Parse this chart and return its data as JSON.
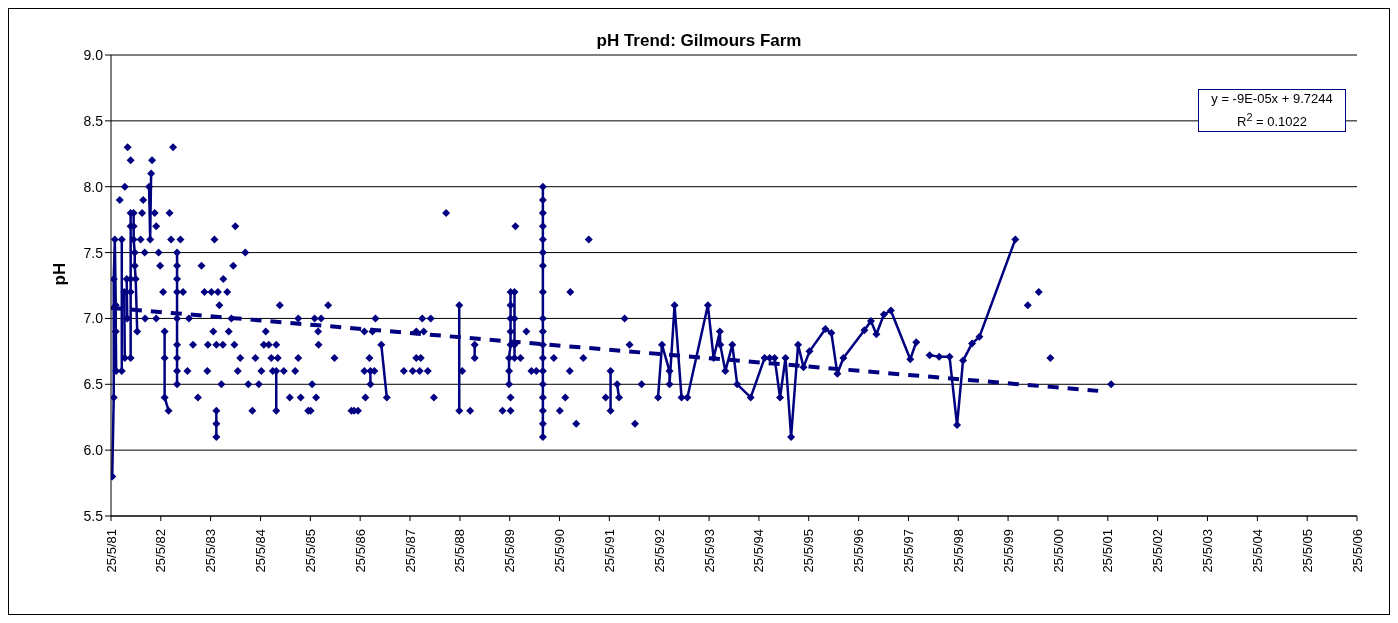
{
  "chart_data": {
    "type": "line",
    "title": "pH Trend: Gilmours Farm",
    "ylabel": "pH",
    "marker": "diamond",
    "line_style": "solid",
    "grid": "y",
    "annotations": [
      "y = -9E-05x + 9.7244",
      "R$^{2}$ = 0.1022"
    ],
    "xlim": [
      "1981-05-25",
      "2006-05-25"
    ],
    "xticks": [
      {
        "value": "1981-05-25",
        "label": "25/5/81"
      },
      {
        "value": "1982-05-25",
        "label": "25/5/82"
      },
      {
        "value": "1983-05-25",
        "label": "25/5/83"
      },
      {
        "value": "1984-05-25",
        "label": "25/5/84"
      },
      {
        "value": "1985-05-25",
        "label": "25/5/85"
      },
      {
        "value": "1986-05-25",
        "label": "25/5/86"
      },
      {
        "value": "1987-05-25",
        "label": "25/5/87"
      },
      {
        "value": "1988-05-25",
        "label": "25/5/88"
      },
      {
        "value": "1989-05-25",
        "label": "25/5/89"
      },
      {
        "value": "1990-05-25",
        "label": "25/5/90"
      },
      {
        "value": "1991-05-25",
        "label": "25/5/91"
      },
      {
        "value": "1992-05-25",
        "label": "25/5/92"
      },
      {
        "value": "1993-05-25",
        "label": "25/5/93"
      },
      {
        "value": "1994-05-25",
        "label": "25/5/94"
      },
      {
        "value": "1995-05-25",
        "label": "25/5/95"
      },
      {
        "value": "1996-05-25",
        "label": "25/5/96"
      },
      {
        "value": "1997-05-25",
        "label": "25/5/97"
      },
      {
        "value": "1998-05-25",
        "label": "25/5/98"
      },
      {
        "value": "1999-05-25",
        "label": "25/5/99"
      },
      {
        "value": "2000-05-25",
        "label": "25/5/00"
      },
      {
        "value": "2001-05-25",
        "label": "25/5/01"
      },
      {
        "value": "2002-05-25",
        "label": "25/5/02"
      },
      {
        "value": "2003-05-25",
        "label": "25/5/03"
      },
      {
        "value": "2004-05-25",
        "label": "25/5/04"
      },
      {
        "value": "2005-05-25",
        "label": "25/5/05"
      },
      {
        "value": "2006-05-25",
        "label": "25/5/06"
      }
    ],
    "ylim": [
      5.5,
      9.0
    ],
    "yticks": [
      5.5,
      {
        "value": 6,
        "label": "6.0"
      },
      6.5,
      {
        "value": 7,
        "label": "7.0"
      },
      7.5,
      {
        "value": 8,
        "label": "8.0"
      },
      8.5,
      {
        "value": 9,
        "label": "9.0"
      }
    ],
    "series": [
      {
        "type": "line",
        "color": "#000080",
        "x": [
          "1981-06-03",
          "1981-06-14",
          "1981-06-14",
          "1981-06-22",
          "1981-06-29",
          "1981-06-29",
          "1981-07-02",
          null,
          "1981-07-28",
          null,
          "1981-08-12",
          "1981-08-12",
          null,
          "1981-08-30",
          "1981-09-03",
          null,
          "1981-09-03",
          null,
          "1981-09-17",
          "1981-09-21",
          null,
          "1981-09-24",
          null,
          "1981-10-16",
          "1981-10-16",
          "1981-10-16",
          "1981-10-16",
          "1981-10-16",
          null,
          "1981-10-16",
          null,
          "1981-11-07",
          "1981-11-07",
          "1981-11-07",
          "1981-11-15",
          "1981-11-15",
          "1981-11-22",
          "1981-12-03",
          null,
          "1981-12-28",
          null,
          "1982-01-08",
          null,
          "1982-01-16",
          null,
          "1982-01-27",
          null,
          "1982-01-30",
          null,
          "1982-02-28",
          "1982-03-08",
          "1982-03-15",
          null,
          "1982-03-22",
          null,
          "1982-04-10",
          null,
          "1982-04-21",
          null,
          "1982-04-21",
          null,
          "1982-05-09",
          null,
          "1982-05-20",
          null,
          "1982-06-11",
          null,
          "1982-06-22",
          "1982-06-22",
          "1982-06-22",
          "1982-07-21",
          null,
          "1982-07-28",
          null,
          "1982-08-08",
          null,
          "1982-08-23",
          null,
          "1982-09-21",
          "1982-09-21",
          "1982-09-21",
          "1982-09-21",
          "1982-09-21",
          "1982-09-21",
          "1982-09-21",
          "1982-09-21",
          "1982-09-21",
          null,
          "1982-10-16",
          null,
          "1982-11-04",
          null,
          "1982-12-06",
          null,
          "1982-12-17",
          null,
          "1983-01-16",
          null,
          "1983-02-21",
          null,
          "1983-03-19",
          null,
          "1983-04-10",
          null,
          "1983-05-01",
          null,
          "1983-05-05",
          null,
          "1983-05-31",
          null,
          "1983-06-14",
          null,
          "1983-06-22",
          null,
          "1983-07-06",
          null,
          "1983-07-06",
          "1983-07-06",
          "1983-07-06",
          null,
          "1983-07-17",
          null,
          "1983-07-28",
          null,
          "1983-08-12",
          null,
          "1983-08-23",
          null,
          "1983-08-26",
          null,
          "1983-09-24",
          null,
          "1983-10-05",
          null,
          "1983-10-24",
          null,
          "1983-11-07",
          null,
          "1983-11-15",
          null,
          "1983-11-22",
          null,
          "1983-12-10",
          null,
          "1983-12-28",
          null,
          "1984-02-03",
          null,
          "1984-02-25",
          null,
          "1984-03-26",
          null,
          "1984-04-17",
          null,
          "1984-05-12",
          null,
          "1984-05-31",
          null,
          "1984-06-18",
          null,
          "1984-07-02",
          null,
          "1984-07-24",
          null,
          "1984-08-12",
          null,
          "1984-08-23",
          null,
          "1984-09-17",
          null,
          "1984-09-17",
          "1984-09-17",
          null,
          "1984-09-28",
          null,
          "1984-10-13",
          null,
          "1984-11-11",
          null,
          "1984-12-25",
          null,
          "1985-02-03",
          null,
          "1985-02-25",
          null,
          "1985-02-25",
          null,
          "1985-03-15",
          null,
          "1985-05-09",
          null,
          "1985-05-27",
          null,
          "1985-06-07",
          null,
          "1985-06-25",
          null,
          "1985-07-06",
          null,
          "1985-07-21",
          null,
          "1985-07-24",
          null,
          "1985-08-12",
          null,
          "1985-10-02",
          null,
          "1985-11-18",
          null,
          "1986-03-22",
          null,
          "1986-04-10",
          null,
          "1986-05-09",
          null,
          "1986-06-25",
          null,
          "1986-06-25",
          null,
          "1986-07-02",
          null,
          "1986-08-01",
          null,
          "1986-08-08",
          "1986-08-08",
          null,
          "1986-08-23",
          null,
          "1986-09-06",
          null,
          "1986-09-14",
          null,
          "1986-10-27",
          "1986-12-06",
          null,
          "1987-04-10",
          null,
          "1987-06-14",
          null,
          "1987-07-10",
          null,
          "1987-07-10",
          null,
          "1987-08-04",
          null,
          "1987-08-12",
          null,
          "1987-08-23",
          null,
          "1987-09-03",
          null,
          "1987-10-02",
          null,
          "1987-10-24",
          null,
          "1987-11-16",
          null,
          "1988-02-14",
          null,
          "1988-05-20",
          "1988-05-20",
          null,
          "1988-06-11",
          null,
          "1988-08-08",
          null,
          "1988-09-10",
          "1988-09-10",
          null,
          "1989-04-02",
          null,
          "1989-05-31",
          null,
          "1989-05-31",
          null,
          "1989-05-20",
          "1989-05-20",
          "1989-05-20",
          "1989-05-31",
          "1989-05-31",
          "1989-05-31",
          "1989-05-31",
          "1989-05-31",
          "1989-06-29",
          "1989-06-29",
          "1989-06-29",
          "1989-06-29",
          null,
          "1989-07-06",
          null,
          "1989-08-12",
          null,
          "1989-09-24",
          null,
          "1989-10-31",
          null,
          "1989-12-06",
          null,
          "1990-01-23",
          "1990-01-23",
          "1990-01-23",
          "1990-01-23",
          "1990-01-23",
          "1990-01-23",
          "1990-01-23",
          "1990-01-23",
          "1990-01-23",
          "1990-01-23",
          "1990-01-23",
          "1990-01-23",
          "1990-01-23",
          "1990-01-23",
          "1990-01-23",
          "1990-01-23",
          "1990-01-23",
          "1990-01-23",
          null,
          "1990-04-13",
          null,
          "1990-05-27",
          null,
          "1990-07-06",
          null,
          "1990-08-08",
          null,
          "1990-08-12",
          null,
          "1990-09-24",
          null,
          "1990-11-15",
          null,
          "1990-12-25",
          null,
          "1991-04-28",
          null,
          "1991-06-03",
          "1991-06-03",
          null,
          "1991-07-21",
          "1991-08-04",
          null,
          "1991-09-14",
          null,
          "1991-10-20",
          null,
          "1991-11-29",
          null,
          "1992-01-16",
          null,
          "1992-05-16",
          "1992-06-14",
          "1992-08-08",
          "1992-08-08",
          "1992-09-14",
          "1992-11-04",
          "1992-12-17",
          "1993-05-16",
          "1993-06-27",
          "1993-08-12",
          "1993-08-15",
          "1993-09-21",
          "1993-11-11",
          "1993-12-17",
          "1994-03-26",
          "1994-07-06",
          "1994-08-12",
          "1994-09-17",
          "1994-10-27",
          "1994-12-06",
          "1995-01-16",
          "1995-03-08",
          "1995-04-17",
          "1995-05-31",
          "1995-09-24",
          "1995-11-07",
          "1995-12-21",
          "1996-02-03",
          "1996-07-06",
          "1996-08-23",
          "1996-10-02",
          "1996-11-26",
          "1997-01-16",
          "1997-06-07",
          "1997-07-21",
          null,
          "1997-10-27",
          "1998-01-05",
          "1998-03-22",
          "1998-05-16",
          "1998-06-29",
          "1998-09-03",
          "1998-10-27",
          "1999-07-17",
          null,
          "1999-10-16",
          null,
          "2000-01-05",
          null,
          "2000-03-30",
          null,
          "2001-06-18"
        ],
        "values": [
          5.8,
          6.4,
          7.3,
          7.6,
          7.1,
          6.9,
          6.6,
          null,
          7.9,
          null,
          7.6,
          6.6,
          null,
          7.2,
          6.7,
          null,
          8.0,
          null,
          7.3,
          7.0,
          null,
          8.3,
          null,
          7.8,
          7.7,
          7.3,
          7.2,
          6.7,
          null,
          8.2,
          null,
          7.8,
          7.7,
          7.6,
          7.5,
          7.4,
          7.3,
          6.9,
          null,
          7.6,
          null,
          7.8,
          null,
          7.9,
          null,
          7.5,
          null,
          7.0,
          null,
          8.0,
          7.6,
          8.1,
          null,
          8.2,
          null,
          7.8,
          null,
          7.7,
          null,
          7.0,
          null,
          7.5,
          null,
          7.4,
          null,
          7.2,
          null,
          6.9,
          6.7,
          6.4,
          6.3,
          null,
          7.8,
          null,
          7.6,
          null,
          8.3,
          null,
          7.5,
          7.4,
          7.3,
          7.2,
          7.0,
          6.8,
          6.7,
          6.6,
          6.5,
          null,
          7.6,
          null,
          7.2,
          null,
          6.6,
          null,
          7.0,
          null,
          6.8,
          null,
          6.4,
          null,
          7.4,
          null,
          7.2,
          null,
          6.6,
          null,
          6.8,
          null,
          7.2,
          null,
          6.9,
          null,
          7.6,
          null,
          6.8,
          null,
          6.3,
          6.2,
          6.1,
          null,
          7.2,
          null,
          7.1,
          null,
          6.5,
          null,
          6.8,
          null,
          7.3,
          null,
          7.2,
          null,
          6.9,
          null,
          7.0,
          null,
          7.4,
          null,
          6.8,
          null,
          7.7,
          null,
          6.6,
          null,
          6.7,
          null,
          7.5,
          null,
          6.5,
          null,
          6.3,
          null,
          6.7,
          null,
          6.5,
          null,
          6.6,
          null,
          6.8,
          null,
          6.9,
          null,
          6.8,
          null,
          6.7,
          null,
          6.6,
          null,
          6.8,
          null,
          6.6,
          6.3,
          null,
          6.7,
          null,
          7.1,
          null,
          6.6,
          null,
          6.4,
          null,
          6.6,
          null,
          7.0,
          null,
          6.7,
          null,
          6.4,
          null,
          6.3,
          null,
          6.3,
          null,
          6.5,
          null,
          7.0,
          null,
          6.4,
          null,
          6.9,
          null,
          6.8,
          null,
          7.0,
          null,
          7.1,
          null,
          6.7,
          null,
          6.3,
          null,
          6.3,
          null,
          6.3,
          null,
          6.9,
          null,
          6.6,
          null,
          6.4,
          null,
          6.7,
          null,
          6.6,
          6.5,
          null,
          6.9,
          null,
          6.6,
          null,
          7.0,
          null,
          6.8,
          6.4,
          null,
          6.6,
          null,
          6.6,
          null,
          6.7,
          null,
          6.9,
          null,
          6.6,
          null,
          6.7,
          null,
          7.0,
          null,
          6.9,
          null,
          6.6,
          null,
          7.0,
          null,
          6.4,
          null,
          7.8,
          null,
          7.1,
          6.3,
          null,
          6.6,
          null,
          6.3,
          null,
          6.8,
          6.7,
          null,
          6.3,
          null,
          6.3,
          null,
          6.4,
          null,
          6.5,
          6.6,
          6.7,
          6.8,
          6.9,
          7.0,
          7.1,
          7.2,
          7.2,
          7.0,
          6.8,
          6.7,
          null,
          7.7,
          null,
          6.7,
          null,
          6.9,
          null,
          6.6,
          null,
          6.6,
          null,
          8.0,
          7.9,
          7.8,
          7.7,
          7.6,
          7.5,
          7.4,
          7.2,
          7.0,
          6.9,
          6.8,
          6.7,
          6.6,
          6.5,
          6.4,
          6.3,
          6.2,
          6.1,
          null,
          6.7,
          null,
          6.3,
          null,
          6.4,
          null,
          6.6,
          null,
          7.2,
          null,
          6.2,
          null,
          6.7,
          null,
          7.6,
          null,
          6.4,
          null,
          6.6,
          6.3,
          null,
          6.5,
          6.4,
          null,
          7.0,
          null,
          6.8,
          null,
          6.2,
          null,
          6.5,
          null,
          6.4,
          6.8,
          6.6,
          6.5,
          7.1,
          6.4,
          6.4,
          7.1,
          6.7,
          6.9,
          6.8,
          6.6,
          6.8,
          6.5,
          6.4,
          6.7,
          6.7,
          6.7,
          6.4,
          6.7,
          6.1,
          6.8,
          6.63,
          6.75,
          6.92,
          6.89,
          6.58,
          6.7,
          6.91,
          6.98,
          6.88,
          7.03,
          7.06,
          6.69,
          6.82,
          null,
          6.72,
          6.71,
          6.71,
          6.19,
          6.68,
          6.81,
          6.86,
          7.6,
          null,
          7.1,
          null,
          7.2,
          null,
          6.7,
          null,
          6.5
        ]
      },
      {
        "type": "line",
        "color": "#000080",
        "line_style": "dashed",
        "marker": "none",
        "x": [
          "1981-05-25",
          "2001-03-15"
        ],
        "values": [
          7.08,
          6.45
        ]
      }
    ]
  }
}
